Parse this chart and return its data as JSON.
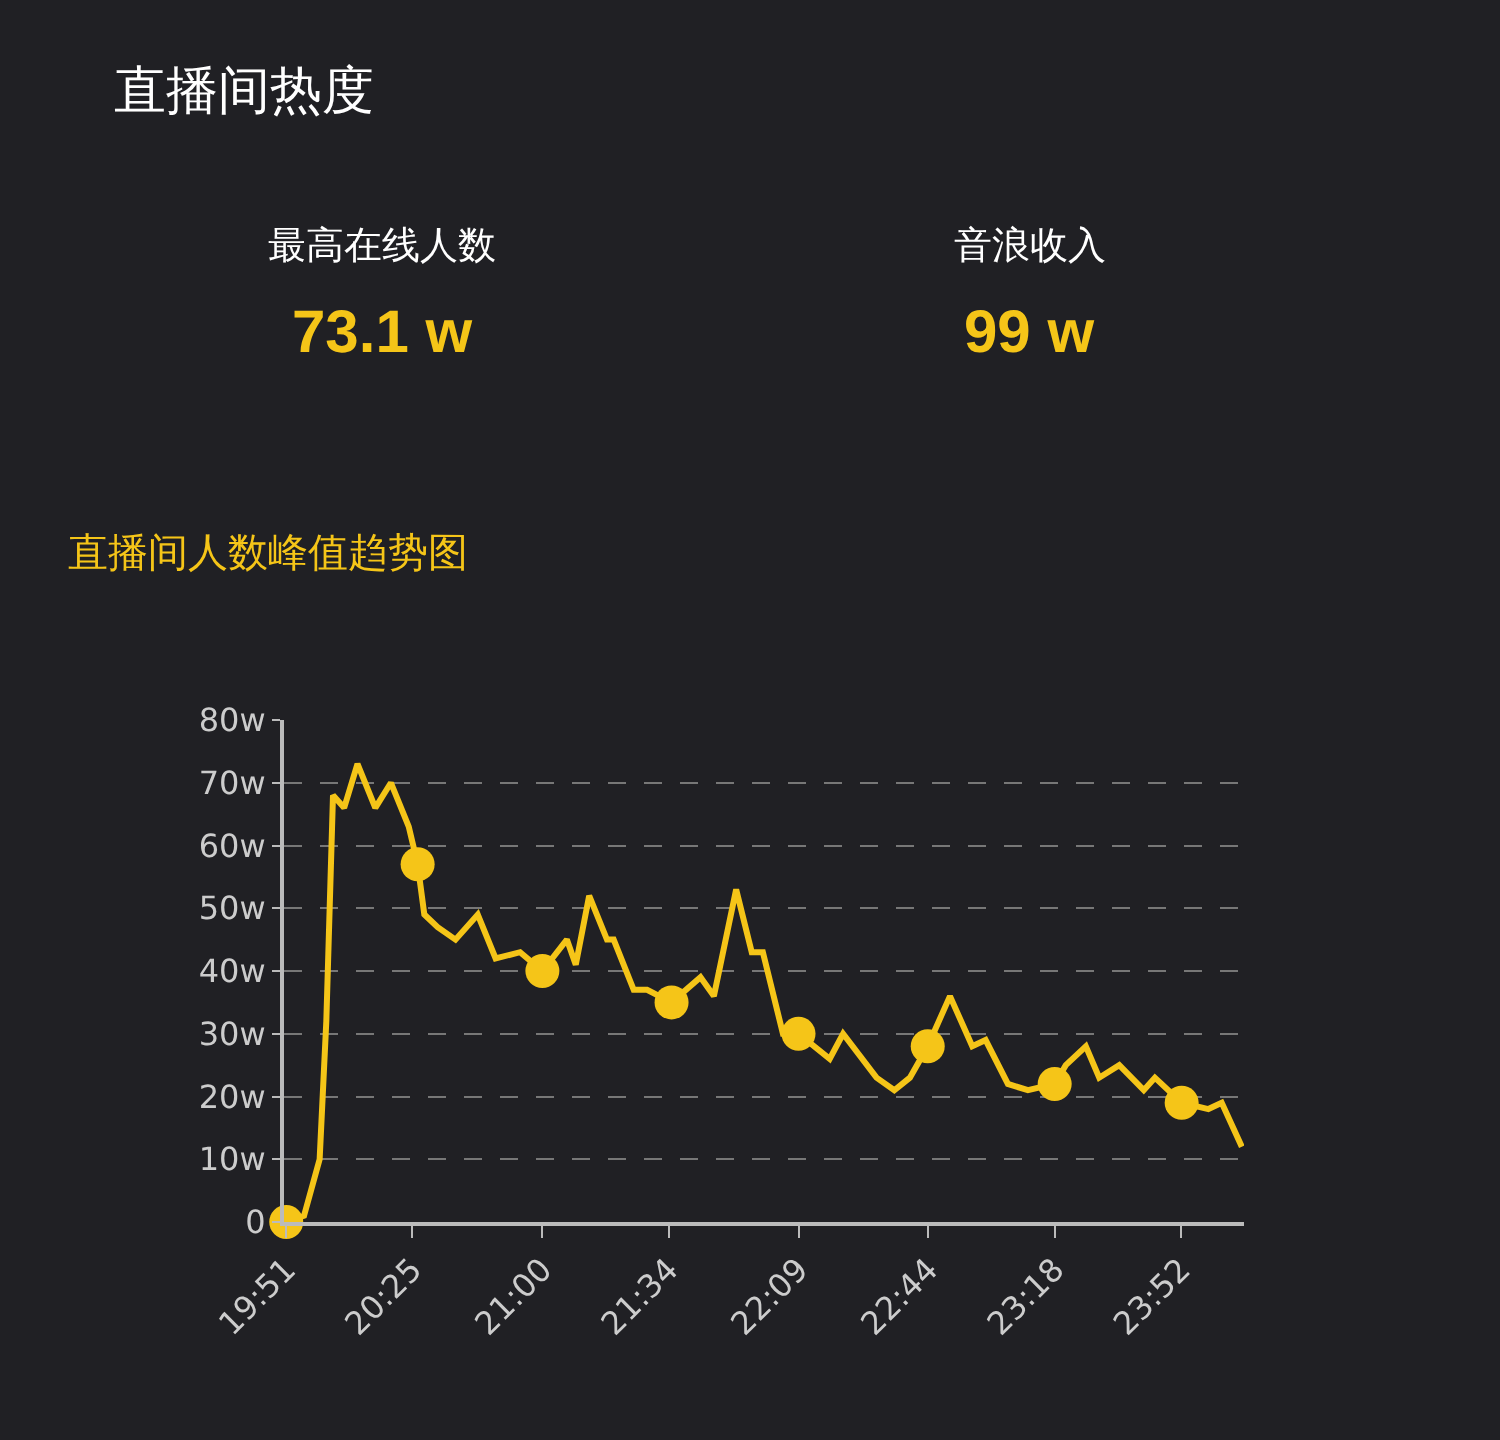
{
  "chart_data": {
    "type": "line",
    "title": "直播间热度",
    "subtitle": "直播间人数峰值趋势图",
    "annotations": [
      "最高在线人数",
      "73.1 w",
      "音浪收入",
      "99 w"
    ],
    "series": [
      {
        "color": "#f5c518",
        "x": [
          19.85,
          19.93,
          20.0,
          20.03,
          20.06,
          20.11,
          20.17,
          20.25,
          20.32,
          20.4,
          20.44,
          20.47,
          20.53,
          20.61,
          20.71,
          20.79,
          20.9,
          21.0,
          21.11,
          21.15,
          21.21,
          21.29,
          21.32,
          21.41,
          21.47,
          21.58,
          21.71,
          21.77,
          21.87,
          21.94,
          21.99,
          22.08,
          22.15,
          22.29,
          22.35,
          22.5,
          22.58,
          22.65,
          22.73,
          22.83,
          22.93,
          22.99,
          23.09,
          23.18,
          23.3,
          23.35,
          23.44,
          23.5,
          23.59,
          23.7,
          23.75,
          23.87,
          23.99,
          24.05,
          24.14
        ],
        "values": [
          0,
          1,
          10,
          32,
          68,
          66,
          73,
          66,
          70,
          63,
          57,
          49,
          47,
          45,
          49,
          42,
          43,
          40,
          45,
          41,
          52,
          45,
          45,
          37,
          37,
          35,
          39,
          36,
          53,
          43,
          43,
          30,
          30,
          26,
          30,
          23,
          21,
          23,
          28,
          36,
          28,
          29,
          22,
          21,
          22,
          25,
          28,
          23,
          25,
          21,
          23,
          19,
          18,
          19,
          12
        ]
      },
      {
        "type": "scatter",
        "color": "#f5c518",
        "marker": "circle",
        "x": [
          19.85,
          20.44,
          21.0,
          21.58,
          22.15,
          22.73,
          23.3,
          23.87
        ],
        "values": [
          0,
          57,
          40,
          35,
          30,
          28,
          22,
          19
        ]
      }
    ],
    "xlim": [
      19.84,
      24.15
    ],
    "xticks": [
      {
        "value": 19.85,
        "label": "19:51"
      },
      {
        "value": 20.4167,
        "label": "20:25"
      },
      {
        "value": 21.0,
        "label": "21:00"
      },
      {
        "value": 21.5667,
        "label": "21:34"
      },
      {
        "value": 22.15,
        "label": "22:09"
      },
      {
        "value": 22.7333,
        "label": "22:44"
      },
      {
        "value": 23.3,
        "label": "23:18"
      },
      {
        "value": 23.8667,
        "label": "23:52"
      }
    ],
    "ylim": [
      0,
      80
    ],
    "yticks": [
      0,
      {
        "value": 10,
        "label": "10w"
      },
      {
        "value": 20,
        "label": "20w"
      },
      {
        "value": 30,
        "label": "30w"
      },
      {
        "value": 40,
        "label": "40w"
      },
      {
        "value": 50,
        "label": "50w"
      },
      {
        "value": 60,
        "label": "60w"
      },
      {
        "value": 70,
        "label": "70w"
      },
      {
        "value": 80,
        "label": "80w"
      }
    ],
    "grid": "y"
  }
}
